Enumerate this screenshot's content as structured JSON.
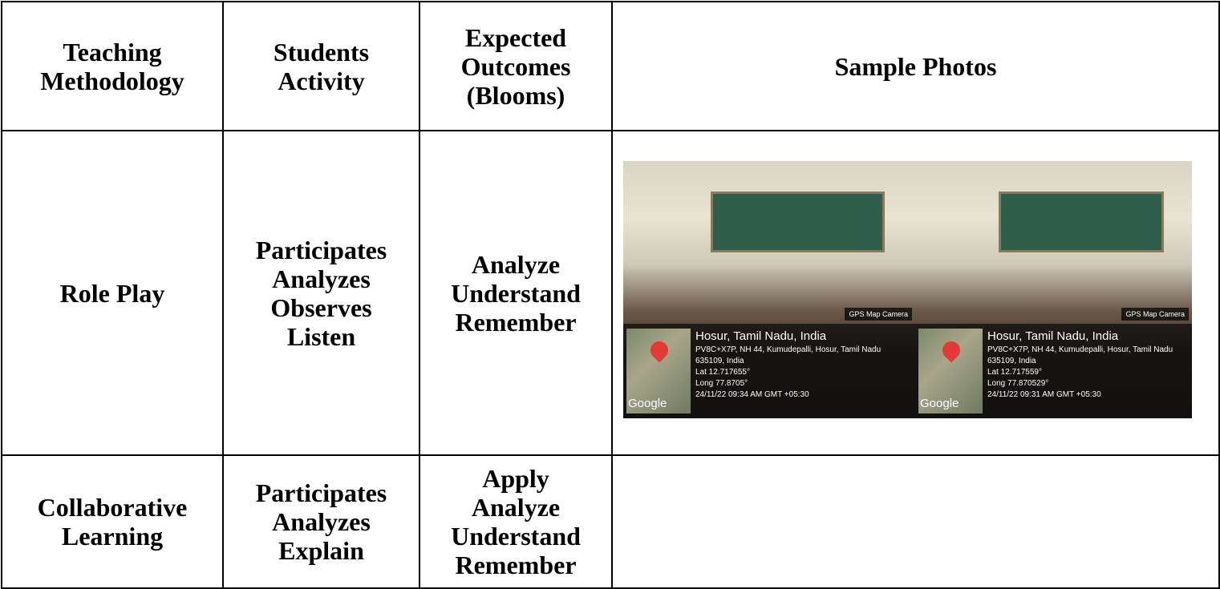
{
  "table": {
    "header": [
      [
        "Teaching",
        "Methodology"
      ],
      [
        "Students",
        "Activity"
      ],
      [
        "Expected",
        "Outcomes",
        "(Blooms)"
      ],
      [
        "Sample Photos"
      ]
    ],
    "rows": [
      [
        [
          "Role Play"
        ],
        [
          "Participates",
          "Analyzes",
          "Observes",
          "Listen"
        ],
        [
          "Analyze",
          "Understand",
          "Remember"
        ]
      ],
      [
        [
          "Collaborative",
          "Learning"
        ],
        [
          "Participates",
          "Analyzes",
          "Explain"
        ],
        [
          "Apply",
          "Analyze",
          "Understand",
          "Remember"
        ]
      ]
    ]
  },
  "photos": [
    {
      "badge": "GPS Map Camera",
      "map_label": "Google",
      "location": "Hosur, Tamil Nadu, India",
      "address": "PV8C+X7P, NH 44, Kumudepalli, Hosur, Tamil Nadu",
      "postal": "635109, India",
      "lat": "Lat 12.717655°",
      "long": "Long 77.8705°",
      "timestamp": "24/11/22 09:34 AM GMT +05:30"
    },
    {
      "badge": "GPS Map Camera",
      "map_label": "Google",
      "location": "Hosur, Tamil Nadu, India",
      "address": "PV8C+X7P, NH 44, Kumudepalli, Hosur, Tamil Nadu",
      "postal": "635109, India",
      "lat": "Lat 12.717559°",
      "long": "Long 77.870529°",
      "timestamp": "24/11/22 09:31 AM GMT +05:30"
    }
  ]
}
